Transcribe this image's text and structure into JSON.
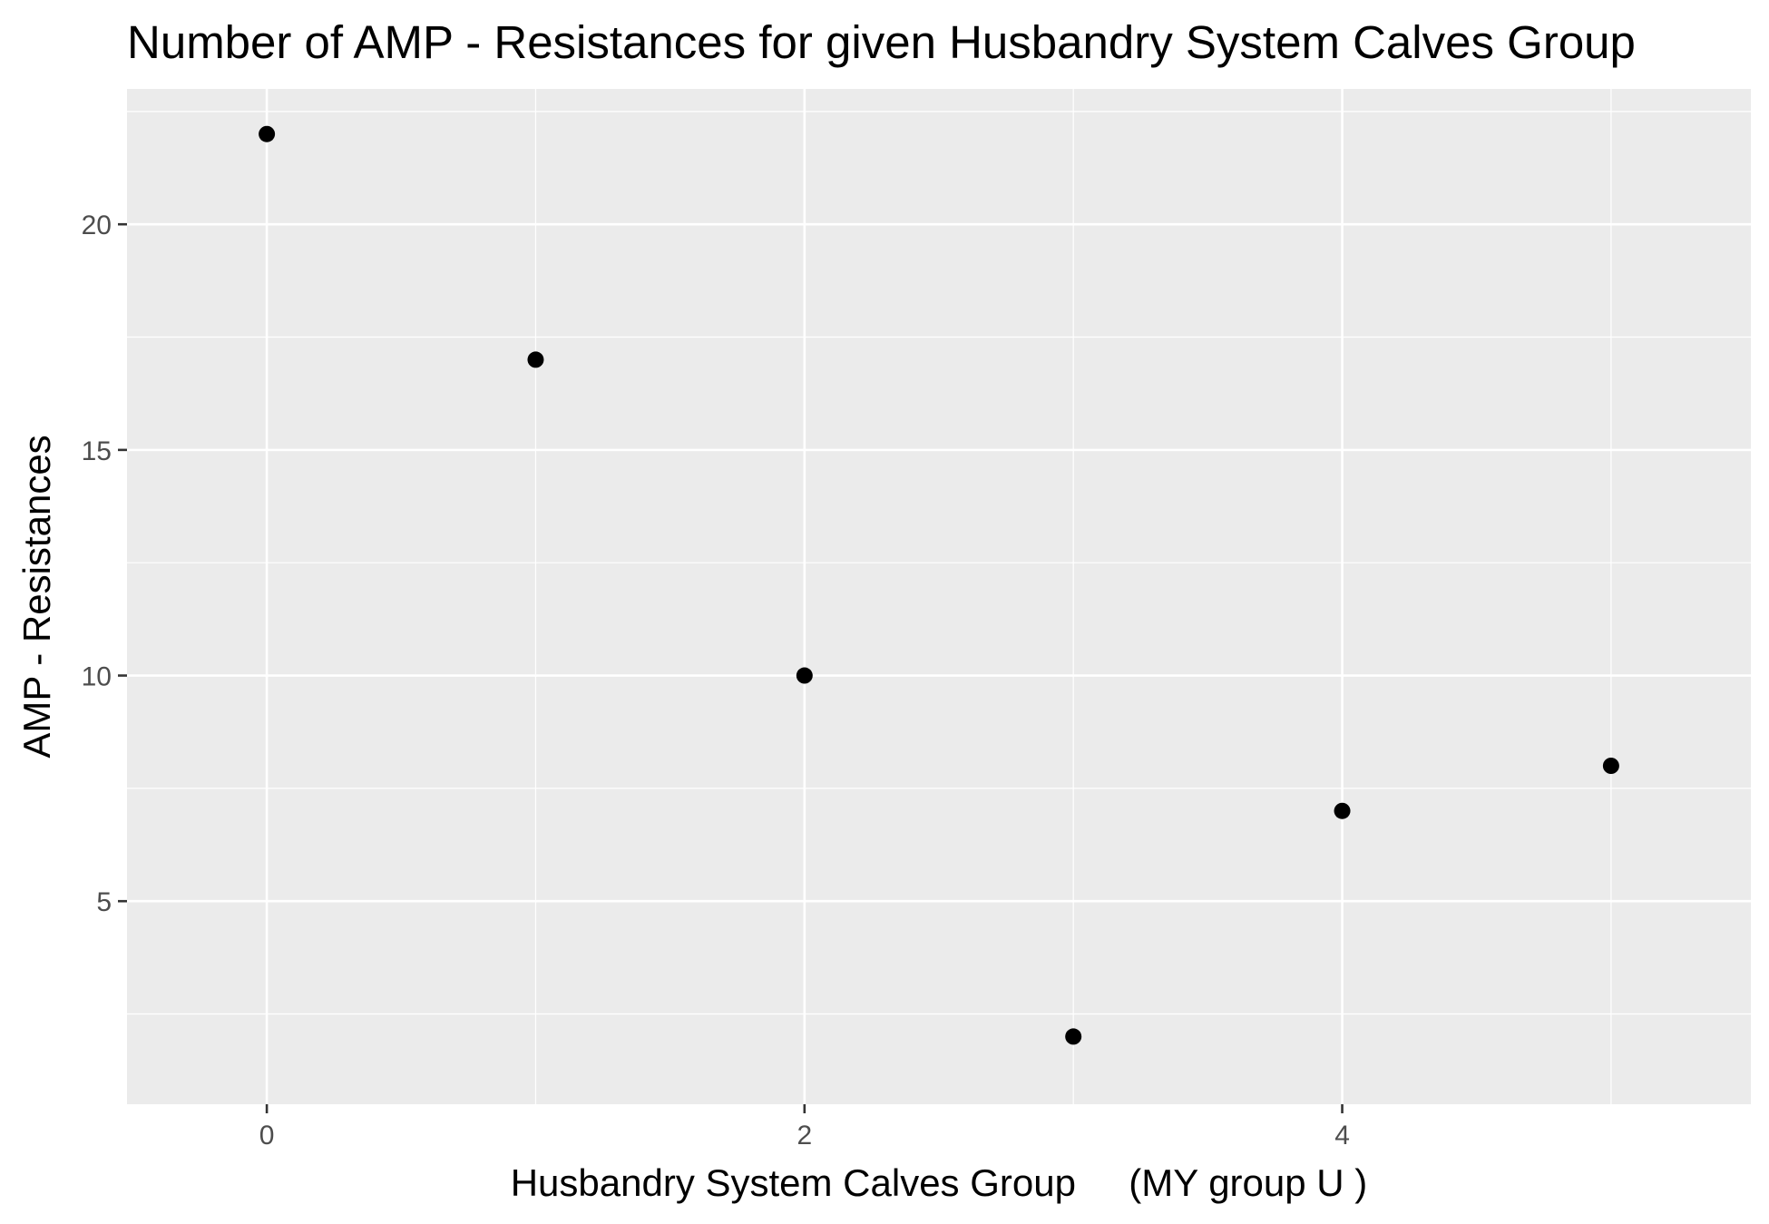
{
  "chart_data": {
    "type": "scatter",
    "title": "Number of AMP - Resistances for given Husbandry System Calves Group",
    "xlabel": "Husbandry System Calves Group     (MY group U )",
    "ylabel": "AMP - Resistances",
    "x": [
      0,
      1,
      2,
      3,
      4,
      5
    ],
    "y": [
      22,
      17,
      10,
      2,
      7,
      8
    ],
    "xlim": [
      -0.52,
      5.52
    ],
    "ylim": [
      0.5,
      23.0
    ],
    "x_major_ticks": [
      0,
      2,
      4
    ],
    "x_minor_ticks": [
      1,
      3,
      5
    ],
    "y_major_ticks": [
      5,
      10,
      15,
      20
    ],
    "y_minor_ticks": [
      2.5,
      7.5,
      12.5,
      17.5,
      22.5
    ],
    "x_tick_labels": [
      "0",
      "2",
      "4"
    ],
    "y_tick_labels": [
      "5",
      "10",
      "15",
      "20"
    ],
    "grid": true,
    "colors": {
      "panel_background": "#ebebeb",
      "grid": "#ffffff",
      "point": "#000000",
      "tick": "#333333",
      "tick_label": "#4d4d4d"
    }
  }
}
